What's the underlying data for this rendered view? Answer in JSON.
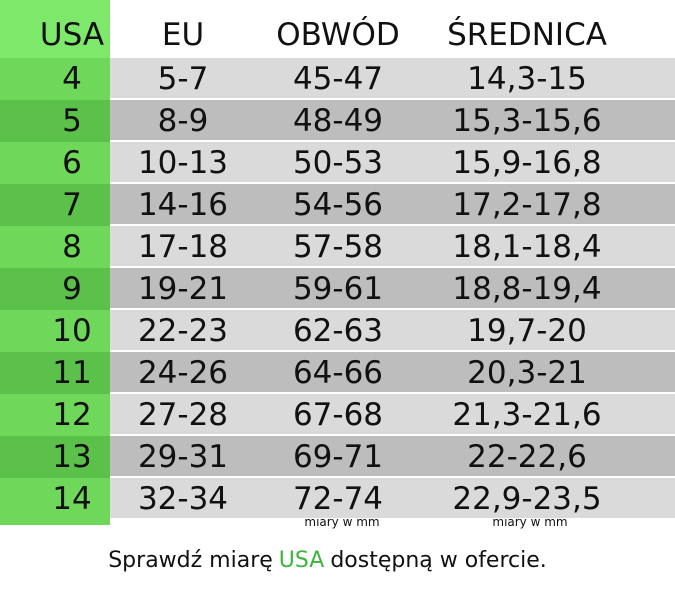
{
  "table": {
    "columns": [
      "USA",
      "EU",
      "OBWÓD",
      "ŚREDNICA"
    ],
    "rows": [
      [
        "4",
        "5-7",
        "45-47",
        "14,3-15"
      ],
      [
        "5",
        "8-9",
        "48-49",
        "15,3-15,6"
      ],
      [
        "6",
        "10-13",
        "50-53",
        "15,9-16,8"
      ],
      [
        "7",
        "14-16",
        "54-56",
        "17,2-17,8"
      ],
      [
        "8",
        "17-18",
        "57-58",
        "18,1-18,4"
      ],
      [
        "9",
        "19-21",
        "59-61",
        "18,8-19,4"
      ],
      [
        "10",
        "22-23",
        "62-63",
        "19,7-20"
      ],
      [
        "11",
        "24-26",
        "64-66",
        "20,3-21"
      ],
      [
        "12",
        "27-28",
        "67-68",
        "21,3-21,6"
      ],
      [
        "13",
        "29-31",
        "69-71",
        "22-22,6"
      ],
      [
        "14",
        "32-34",
        "72-74",
        "22,9-23,5"
      ]
    ],
    "notes": [
      "miary w mm",
      "miary w mm"
    ]
  },
  "footer": {
    "before": "Sprawdź miarę",
    "highlight": "USA",
    "after": "dostępną w ofercie."
  }
}
